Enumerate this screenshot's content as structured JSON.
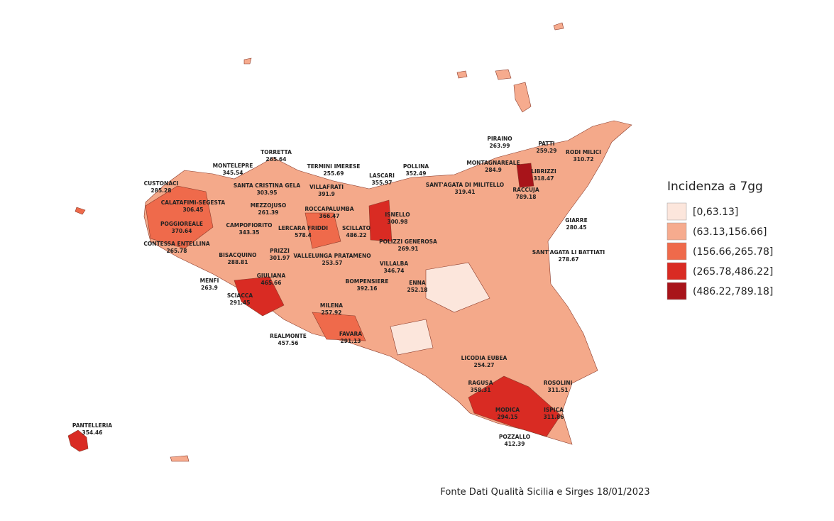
{
  "legend": {
    "title": "Incidenza a 7gg",
    "classes": [
      {
        "label": "[0,63.13]",
        "color": "#fce6dc"
      },
      {
        "label": "(63.13,156.66]",
        "color": "#f6ab8e"
      },
      {
        "label": "(156.66,265.78]",
        "color": "#ef6a4b"
      },
      {
        "label": "(265.78,486.22]",
        "color": "#d92b23"
      },
      {
        "label": "(486.22,789.18]",
        "color": "#a8141a"
      }
    ]
  },
  "municipalities": [
    {
      "name": "TORRETTA",
      "value": 265.64
    },
    {
      "name": "MONTELEPRE",
      "value": 345.54
    },
    {
      "name": "TERMINI IMERESE",
      "value": 255.69
    },
    {
      "name": "LASCARI",
      "value": 355.97
    },
    {
      "name": "POLLINA",
      "value": 352.49
    },
    {
      "name": "PIRAINO",
      "value": 263.99
    },
    {
      "name": "PATTI",
      "value": 259.29
    },
    {
      "name": "RODI MILICI",
      "value": 310.72
    },
    {
      "name": "MONTAGNAREALE",
      "value": 284.9
    },
    {
      "name": "LIBRIZZI",
      "value": 318.47
    },
    {
      "name": "SANT'AGATA DI MILITELLO",
      "value": 319.41
    },
    {
      "name": "RACCUJA",
      "value": 789.18
    },
    {
      "name": "CUSTONACI",
      "value": 285.28
    },
    {
      "name": "SANTA CRISTINA GELA",
      "value": 303.95
    },
    {
      "name": "VILLAFRATI",
      "value": 391.9
    },
    {
      "name": "CALATAFIMI-SEGESTA",
      "value": 306.45
    },
    {
      "name": "MEZZOJUSO",
      "value": 261.39
    },
    {
      "name": "ROCCAPALUMBA",
      "value": 366.47
    },
    {
      "name": "ISNELLO",
      "value": 300.98
    },
    {
      "name": "GIARRE",
      "value": 280.45
    },
    {
      "name": "POGGIOREALE",
      "value": 370.64
    },
    {
      "name": "CAMPOFIORITO",
      "value": 343.35
    },
    {
      "name": "LERCARA FRIDDI",
      "value": 578.4
    },
    {
      "name": "SCILLATO",
      "value": 486.22
    },
    {
      "name": "CONTESSA ENTELLINA",
      "value": 265.78
    },
    {
      "name": "POLIZZI GENEROSA",
      "value": 269.91
    },
    {
      "name": "SANT'AGATA LI BATTIATI",
      "value": 278.67
    },
    {
      "name": "BISACQUINO",
      "value": 288.81
    },
    {
      "name": "PRIZZI",
      "value": 301.97
    },
    {
      "name": "VALLELUNGA PRATAMENO",
      "value": 253.57
    },
    {
      "name": "VILLALBA",
      "value": 346.74
    },
    {
      "name": "GIULIANA",
      "value": 465.66
    },
    {
      "name": "MENFI",
      "value": 263.9
    },
    {
      "name": "BOMPENSIERE",
      "value": 392.16
    },
    {
      "name": "ENNA",
      "value": 252.18
    },
    {
      "name": "SCIACCA",
      "value": 291.45
    },
    {
      "name": "MILENA",
      "value": 257.92
    },
    {
      "name": "REALMONTE",
      "value": 457.56
    },
    {
      "name": "FAVARA",
      "value": 291.13
    },
    {
      "name": "LICODIA EUBEA",
      "value": 254.27
    },
    {
      "name": "RAGUSA",
      "value": 358.31
    },
    {
      "name": "ROSOLINI",
      "value": 311.51
    },
    {
      "name": "MODICA",
      "value": 294.15
    },
    {
      "name": "ISPICA",
      "value": 311.86
    },
    {
      "name": "POZZALLO",
      "value": 412.39
    },
    {
      "name": "PANTELLERIA",
      "value": 354.46
    }
  ],
  "source": "Fonte Dati Qualità Sicilia e Sirges 18/01/2023"
}
